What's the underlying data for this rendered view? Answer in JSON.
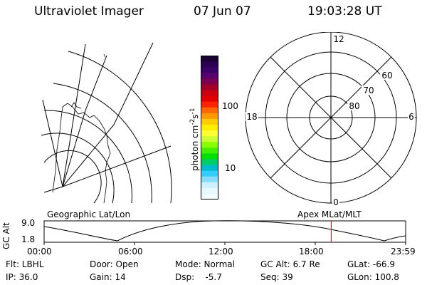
{
  "header": {
    "title": "Ultraviolet Imager",
    "date": "07 Jun 07",
    "time": "19:03:28 UT"
  },
  "colorbar": {
    "label": "photon cm",
    "ticks": [
      "100",
      "10"
    ],
    "colors": [
      "#1a0033",
      "#2a0050",
      "#3a0066",
      "#58006e",
      "#7a0050",
      "#a00028",
      "#c80010",
      "#e00000",
      "#ff2200",
      "#ff6600",
      "#ff9900",
      "#ffcc00",
      "#ffee00",
      "#ffff33",
      "#ccff33",
      "#88ff00",
      "#44ee00",
      "#00dd00",
      "#00cc66",
      "#00bbcc",
      "#33ccff",
      "#88ddff",
      "#ccf0ff",
      "#e6f7ff",
      "#f2fbff"
    ]
  },
  "polar_plot": {
    "mlt_labels": {
      "top": "12",
      "bottom": "0",
      "left": "18",
      "right": "6"
    },
    "lat_labels": [
      "60",
      "70",
      "80"
    ]
  },
  "timeline": {
    "ylabel": "GC Alt",
    "ytick_top": "9.0",
    "ytick_bottom": "1.8",
    "left_title": "Geographic Lat/Lon",
    "right_title": "Apex MLat/MLT",
    "x_ticks": [
      "00:00",
      "06:00",
      "12:00",
      "18:00",
      "23:59"
    ],
    "current_marker_hour": 19.06,
    "marker_color": "#ff0000"
  },
  "info": {
    "flt": "Flt: LBHL",
    "ip": "IP: 36.0",
    "door": "Door: Open",
    "gain": "Gain: 14",
    "mode": "Mode: Normal",
    "dsp": "Dsp:    -5.7",
    "gcalt": "GC Alt: 6.7 Re",
    "seq": "Seq: 39",
    "glat": "GLat: -66.9",
    "glon": "GLon: 100.8"
  }
}
